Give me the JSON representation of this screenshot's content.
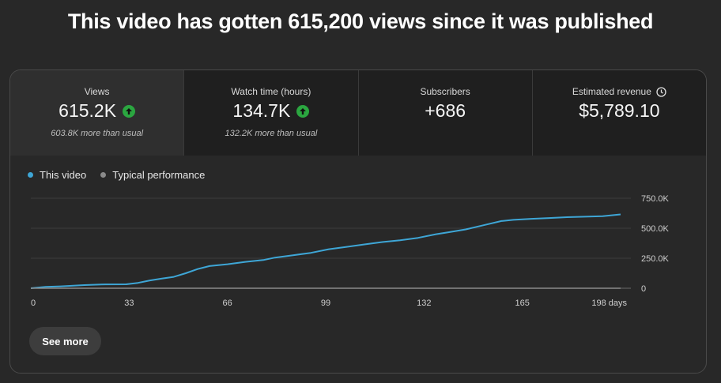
{
  "headline": "This video has gotten 615,200 views since it was published",
  "metrics": [
    {
      "label": "Views",
      "value": "615.2K",
      "note": "603.8K more than usual",
      "trend": "up"
    },
    {
      "label": "Watch time (hours)",
      "value": "134.7K",
      "note": "132.2K more than usual",
      "trend": "up"
    },
    {
      "label": "Subscribers",
      "value": "+686",
      "note": "",
      "trend": ""
    },
    {
      "label": "Estimated revenue",
      "value": "$5,789.10",
      "note": "",
      "trend": "",
      "icon": "clock-icon"
    }
  ],
  "legend": [
    {
      "label": "This video",
      "color": "#3ea6d6"
    },
    {
      "label": "Typical performance",
      "color": "#8a8a8a"
    }
  ],
  "see_more_label": "See more",
  "chart_data": {
    "type": "line",
    "x_ticks": [
      "0",
      "33",
      "66",
      "99",
      "132",
      "165",
      "198 days"
    ],
    "y_ticks": [
      "0",
      "250.0K",
      "500.0K",
      "750.0K"
    ],
    "ylim": [
      0,
      750000
    ],
    "xlim": [
      0,
      198
    ],
    "grid": true,
    "series": [
      {
        "name": "This video",
        "color": "#3ea6d6",
        "x": [
          0,
          5,
          10,
          18,
          25,
          32,
          36,
          40,
          44,
          48,
          52,
          56,
          60,
          66,
          72,
          78,
          82,
          88,
          94,
          100,
          106,
          112,
          118,
          124,
          130,
          136,
          140,
          146,
          152,
          158,
          162,
          168,
          174,
          180,
          186,
          192,
          198
        ],
        "y": [
          0,
          12000,
          16000,
          26000,
          32000,
          33000,
          45000,
          65000,
          80000,
          95000,
          125000,
          160000,
          185000,
          200000,
          220000,
          235000,
          255000,
          275000,
          295000,
          325000,
          345000,
          365000,
          385000,
          400000,
          420000,
          450000,
          465000,
          490000,
          525000,
          560000,
          570000,
          578000,
          585000,
          592000,
          596000,
          600000,
          615200
        ]
      },
      {
        "name": "Typical performance",
        "color": "#8a8a8a",
        "x": [
          0,
          198
        ],
        "y": [
          0,
          0
        ]
      }
    ]
  }
}
